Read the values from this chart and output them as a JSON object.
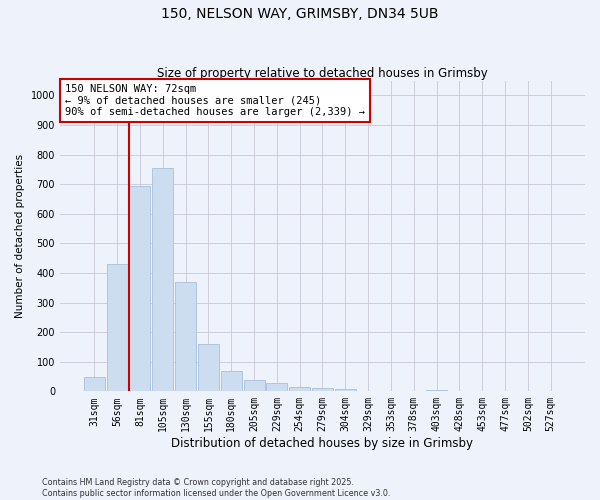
{
  "title": "150, NELSON WAY, GRIMSBY, DN34 5UB",
  "subtitle": "Size of property relative to detached houses in Grimsby",
  "xlabel": "Distribution of detached houses by size in Grimsby",
  "ylabel": "Number of detached properties",
  "categories": [
    "31sqm",
    "56sqm",
    "81sqm",
    "105sqm",
    "130sqm",
    "155sqm",
    "180sqm",
    "205sqm",
    "229sqm",
    "254sqm",
    "279sqm",
    "304sqm",
    "329sqm",
    "353sqm",
    "378sqm",
    "403sqm",
    "428sqm",
    "453sqm",
    "477sqm",
    "502sqm",
    "527sqm"
  ],
  "values": [
    50,
    430,
    695,
    755,
    370,
    160,
    70,
    37,
    28,
    14,
    10,
    8,
    2,
    2,
    2,
    5,
    2,
    0,
    0,
    0,
    0
  ],
  "bar_color": "#ccddf0",
  "bar_edge_color": "#a8c0dc",
  "grid_color": "#c8c8d8",
  "background_color": "#eef2fb",
  "vline_x_index": 1.5,
  "vline_color": "#cc0000",
  "annotation_text": "150 NELSON WAY: 72sqm\n← 9% of detached houses are smaller (245)\n90% of semi-detached houses are larger (2,339) →",
  "annotation_box_facecolor": "#ffffff",
  "annotation_box_edgecolor": "#cc0000",
  "ylim": [
    0,
    1050
  ],
  "yticks": [
    0,
    100,
    200,
    300,
    400,
    500,
    600,
    700,
    800,
    900,
    1000
  ],
  "title_fontsize": 10,
  "subtitle_fontsize": 8.5,
  "xlabel_fontsize": 8.5,
  "ylabel_fontsize": 7.5,
  "tick_fontsize": 7,
  "footer_line1": "Contains HM Land Registry data © Crown copyright and database right 2025.",
  "footer_line2": "Contains public sector information licensed under the Open Government Licence v3.0."
}
